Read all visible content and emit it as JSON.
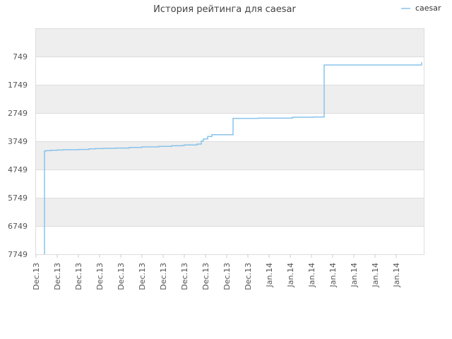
{
  "chart_data": {
    "type": "line",
    "title": "История рейтинга для caesar",
    "xlabel": "",
    "ylabel": "",
    "y_axis_inverted": true,
    "ylim": [
      -251,
      7749
    ],
    "y_ticks": [
      749,
      1749,
      2749,
      3749,
      4749,
      5749,
      6749,
      7749
    ],
    "x_tick_labels": [
      "Dec.13",
      "Dec.13",
      "Dec.13",
      "Dec.13",
      "Dec.13",
      "Dec.13",
      "Dec.13",
      "Dec.13",
      "Dec.13",
      "Dec.13",
      "Dec.13",
      "Jan.14",
      "Jan.14",
      "Jan.14",
      "Jan.14",
      "Jan.14",
      "Jan.14",
      "Jan.14"
    ],
    "x_tick_label_rotation": -90,
    "grid": true,
    "alternating_bands": true,
    "legend_position": "top-right",
    "series": [
      {
        "name": "caesar",
        "color": "#89c3eb",
        "x": [
          0.4,
          0.4,
          0.5,
          0.7,
          1.0,
          1.3,
          1.5,
          2.0,
          2.5,
          2.8,
          3.2,
          3.8,
          4.4,
          5.0,
          5.8,
          6.4,
          6.9,
          7.0,
          7.6,
          7.8,
          7.9,
          8.1,
          8.3,
          9.3,
          10.5,
          11.0,
          12.1,
          12.1,
          12.5,
          13.1,
          13.1,
          13.6,
          13.7,
          14.0,
          15.4,
          16.1,
          18.2,
          18.2
        ],
        "y": [
          7749,
          4090,
          4080,
          4070,
          4060,
          4050,
          4050,
          4040,
          4020,
          4010,
          4000,
          3990,
          3970,
          3950,
          3930,
          3910,
          3900,
          3880,
          3850,
          3740,
          3670,
          3580,
          3520,
          2940,
          2930,
          2930,
          2910,
          2900,
          2900,
          2890,
          2890,
          1050,
          1050,
          1050,
          1050,
          1050,
          1050,
          950
        ]
      }
    ]
  }
}
